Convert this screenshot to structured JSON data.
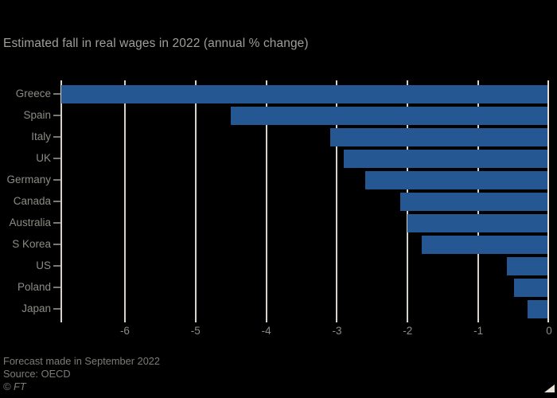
{
  "chart": {
    "title": "Estimated fall in real wages in 2022 (annual % change)",
    "footnote": "Forecast made in September 2022",
    "source": "Source: OECD",
    "credit": "© FT"
  },
  "chart_data": {
    "type": "bar",
    "orientation": "horizontal",
    "title": "Estimated fall in real wages in 2022 (annual % change)",
    "categories": [
      "Greece",
      "Spain",
      "Italy",
      "UK",
      "Germany",
      "Canada",
      "Australia",
      "S Korea",
      "US",
      "Poland",
      "Japan"
    ],
    "values": [
      -6.9,
      -4.5,
      -3.1,
      -2.9,
      -2.6,
      -2.1,
      -2.0,
      -1.8,
      -0.6,
      -0.5,
      -0.3
    ],
    "xlabel": "",
    "ylabel": "",
    "xlim": [
      -6.9,
      0
    ],
    "xticks": [
      -6,
      -5,
      -4,
      -3,
      -2,
      -1,
      0
    ],
    "grid": true,
    "legend": false,
    "annotations": [
      "Forecast made in September 2022",
      "Source: OECD",
      "© FT"
    ],
    "colors": {
      "bar": "#255892",
      "background": "#000000",
      "gridline": "#d9d2c8",
      "zero_line": "#e6ded3",
      "title_text": "#a19f99",
      "axis_text": "#8d8b85",
      "footer_text": "#7e7c76"
    }
  }
}
